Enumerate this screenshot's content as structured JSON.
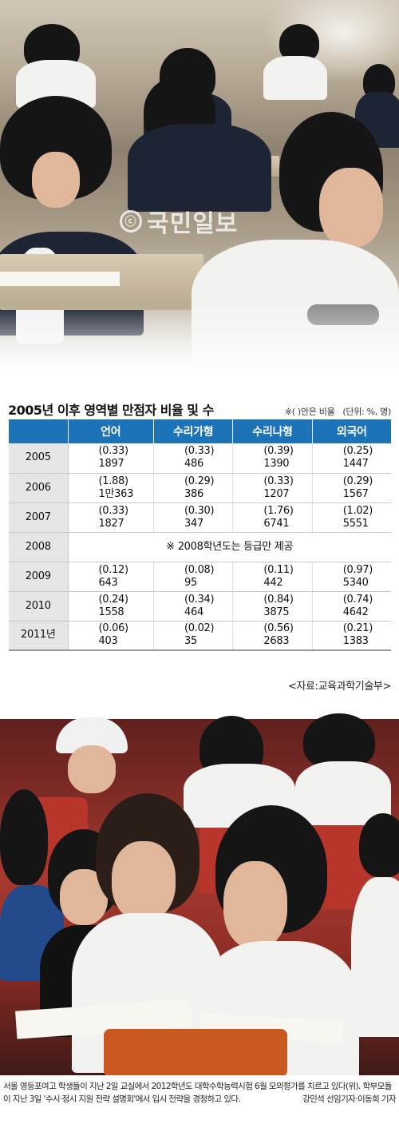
{
  "watermark": {
    "text": "국민일보",
    "seal": "ⓒ"
  },
  "table": {
    "title": "2005년 이후 영역별 만점자 비율 및 수",
    "note": "※( )안은 비율",
    "unit": "(단위: %, 명)",
    "columns": [
      "언어",
      "수리가형",
      "수리나형",
      "외국어"
    ],
    "rows": [
      {
        "year": "2005",
        "cells": [
          [
            "(0.33)",
            "1897"
          ],
          [
            "(0.33)",
            "486"
          ],
          [
            "(0.39)",
            "1390"
          ],
          [
            "(0.25)",
            "1447"
          ]
        ]
      },
      {
        "year": "2006",
        "cells": [
          [
            "(1.88)",
            "1만363"
          ],
          [
            "(0.29)",
            "386"
          ],
          [
            "(0.33)",
            "1207"
          ],
          [
            "(0.29)",
            "1567"
          ]
        ]
      },
      {
        "year": "2007",
        "cells": [
          [
            "(0.33)",
            "1827"
          ],
          [
            "(0.30)",
            "347"
          ],
          [
            "(1.76)",
            "6741"
          ],
          [
            "(1.02)",
            "5551"
          ]
        ]
      },
      {
        "year": "2008",
        "merged": "※ 2008학년도는 등급만 제공"
      },
      {
        "year": "2009",
        "cells": [
          [
            "(0.12)",
            "643"
          ],
          [
            "(0.08)",
            "95"
          ],
          [
            "(0.11)",
            "442"
          ],
          [
            "(0.97)",
            "5340"
          ]
        ]
      },
      {
        "year": "2010",
        "cells": [
          [
            "(0.24)",
            "1558"
          ],
          [
            "(0.34)",
            "464"
          ],
          [
            "(0.84)",
            "3875"
          ],
          [
            "(0.74)",
            "4642"
          ]
        ]
      },
      {
        "year": "2011년",
        "cells": [
          [
            "(0.06)",
            "403"
          ],
          [
            "(0.02)",
            "35"
          ],
          [
            "(0.56)",
            "2683"
          ],
          [
            "(0.21)",
            "1383"
          ]
        ]
      }
    ],
    "source": "<자료:교육과학기술부>"
  },
  "caption": {
    "text": "서울 영등포여고 학생들이 지난 2일 교실에서 2012학년도 대학수학능력시험 6월 모의평가를 치르고 있다(위). 학부모들이 지난 3일 '수시·정시 지원 전략 설명회'에서 입시 전략을 경청하고 있다.",
    "credit": "강민석 선임기자·이동희 기자"
  },
  "colors": {
    "header_blue": "#1c73b8",
    "year_gray": "#e6e6e6"
  }
}
